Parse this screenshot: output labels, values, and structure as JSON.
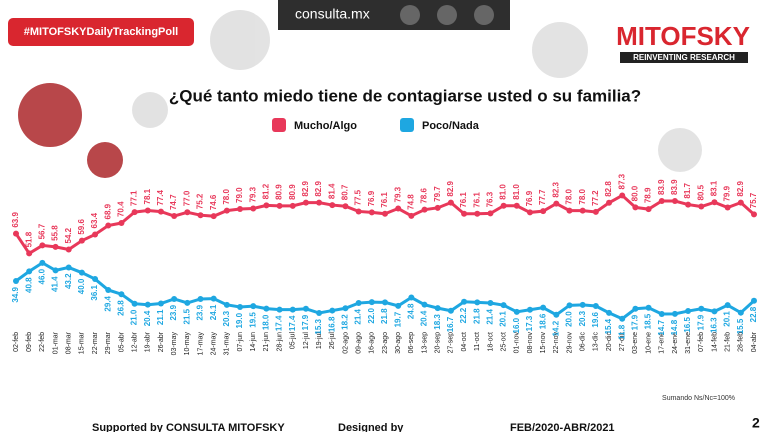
{
  "header": {
    "site": "consulta.mx",
    "badge": "#MITOFSKYDailyTrackingPoll",
    "brand": "MITOFSKY",
    "tagline": "REINVENTING RESEARCH"
  },
  "chart_data": {
    "type": "line",
    "title": "¿Qué tanto miedo tiene de contagiarse usted o su familia?",
    "categories": [
      "02-feb",
      "09-feb",
      "22-feb",
      "01-mar",
      "08-mar",
      "15-mar",
      "22-mar",
      "29-mar",
      "05-abr",
      "12-abr",
      "19-abr",
      "26-abr",
      "03-may",
      "10-may",
      "17-may",
      "24-may",
      "31-may",
      "07-jun",
      "14-jun",
      "21-jun",
      "28-jun",
      "05-jul",
      "12-jul",
      "19-jul",
      "26-jul",
      "02-ago",
      "09-ago",
      "16-ago",
      "23-ago",
      "30-ago",
      "06-sep",
      "13-sep",
      "20-sep",
      "27-sep",
      "04-oct",
      "11-oct",
      "18-oct",
      "25-oct",
      "01-nov",
      "08-nov",
      "15-nov",
      "22-nov",
      "29-nov",
      "06-dic",
      "13-dic",
      "20-dic",
      "27-dic",
      "03-ene",
      "10-ene",
      "17-ene",
      "24-ene",
      "31-ene",
      "07-feb",
      "14-feb",
      "21-feb",
      "28-feb",
      "04-abr"
    ],
    "series": [
      {
        "name": "Mucho/Algo",
        "color": "#e8385a",
        "values": [
          63.9,
          51.8,
          56.7,
          55.8,
          54.2,
          59.6,
          63.4,
          68.9,
          70.4,
          77.1,
          78.1,
          77.4,
          74.7,
          77.0,
          75.2,
          74.6,
          78.0,
          79.0,
          79.3,
          81.2,
          80.9,
          80.9,
          82.9,
          82.9,
          81.4,
          80.7,
          77.5,
          76.9,
          76.1,
          79.3,
          74.8,
          78.6,
          79.7,
          82.9,
          76.1,
          76.1,
          76.3,
          81.0,
          81.0,
          76.9,
          77.7,
          82.3,
          78.0,
          78.0,
          77.2,
          82.8,
          87.3,
          80.0,
          78.9,
          83.9,
          83.9,
          81.7,
          80.5,
          83.1,
          79.9,
          82.9,
          75.7
        ],
        "value_labels": [
          "63.9",
          "51.8",
          "56.7",
          "55.8",
          "54.2",
          "59.6",
          "63.4",
          "68.9",
          "70.4",
          "77.1",
          "78.1",
          "77.4",
          "74.7",
          "77.0",
          "75.2",
          "74.6",
          "78.0",
          "79.0",
          "79.3",
          "81.2",
          "80.9",
          "80.9",
          "82.9",
          "82.9",
          "81.4",
          "80.7",
          "77.5",
          "76.9",
          "76.1",
          "79.3",
          "74.8",
          "78.6",
          "79.7",
          "82.9",
          "76.1",
          "76.1",
          "76.3",
          "81.0",
          "81.0",
          "76.9",
          "77.7",
          "82.3",
          "78.0",
          "78.0",
          "77.2",
          "82.8",
          "87.3",
          "80.0",
          "78.9",
          "83.9",
          "83.9",
          "81.7",
          "80.5",
          "83.1",
          "79.9",
          "82.9",
          "75.7"
        ]
      },
      {
        "name": "Poco/Nada",
        "color": "#1ea7e1",
        "values": [
          34.9,
          40.8,
          46.0,
          41.4,
          43.2,
          40.0,
          36.1,
          29.4,
          26.8,
          21.0,
          20.4,
          21.1,
          23.9,
          21.5,
          23.9,
          24.1,
          20.3,
          19.0,
          19.5,
          18.0,
          17.4,
          17.4,
          17.9,
          15.3,
          16.8,
          18.2,
          21.4,
          22.0,
          21.8,
          19.7,
          24.8,
          20.4,
          18.3,
          16.7,
          22.2,
          21.8,
          21.4,
          20.1,
          16.0,
          17.3,
          18.6,
          14.2,
          20.0,
          20.3,
          19.6,
          15.4,
          11.8,
          17.9,
          18.5,
          14.7,
          14.8,
          16.5,
          17.9,
          16.3,
          20.1,
          15.5,
          22.8
        ],
        "value_labels": [
          "34.9",
          "40.8",
          "46.0",
          "41.4",
          "43.2",
          "40.0",
          "36.1",
          "29.4",
          "26.8",
          "21.0",
          "20.4",
          "21.1",
          "23.9",
          "21.5",
          "23.9",
          "24.1",
          "20.3",
          "19.0",
          "19.5",
          "18.0",
          "17.4",
          "17.4",
          "17.9",
          "15.3",
          "16.8",
          "18.2",
          "21.4",
          "22.0",
          "21.8",
          "19.7",
          "24.8",
          "20.4",
          "18.3",
          "16.7",
          "22.2",
          "21.8",
          "21.4",
          "20.1",
          "16.0",
          "17.3",
          "18.6",
          "14.2",
          "20.0",
          "20.3",
          "19.6",
          "15.4",
          "11.8",
          "17.9",
          "18.5",
          "14.7",
          "14.8",
          "16.5",
          "17.9",
          "16.3",
          "20.1",
          "15.5",
          "22.8"
        ]
      }
    ],
    "note": "Sumando Ns/Nc=100%"
  },
  "footer": {
    "supported": "Supported by  CONSULTA  MITOFSKY",
    "designed": "Designed by",
    "period": "FEB/2020-ABR/2021",
    "page": "2"
  }
}
